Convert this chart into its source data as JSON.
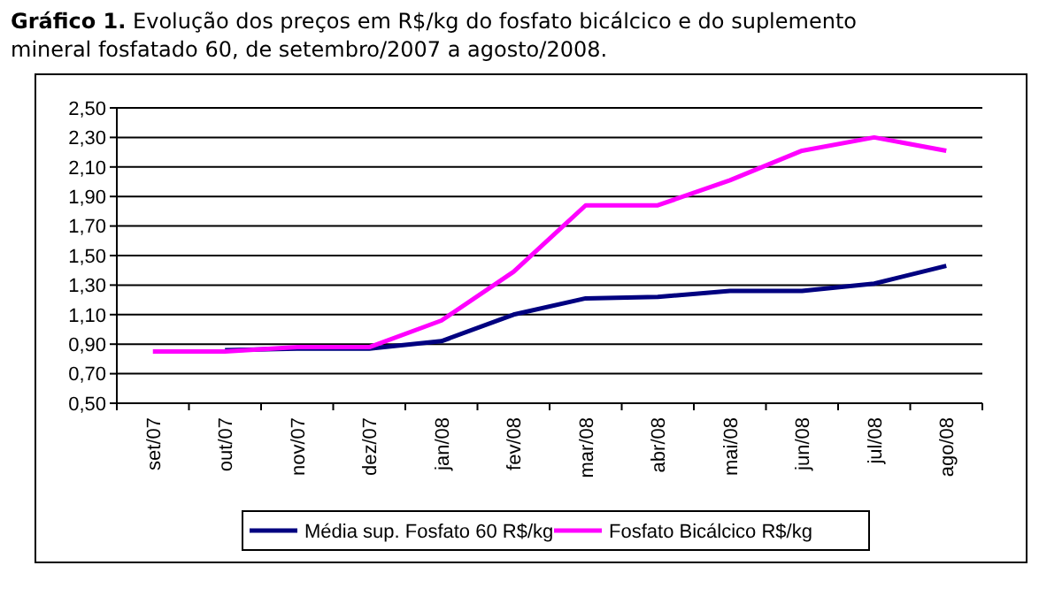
{
  "chart_data": {
    "type": "line",
    "title": "Gráfico 1.",
    "subtitle": "Evolução dos preços em R$/kg do fosfato bicálcico e do suplemento mineral fosfatado 60, de setembro/2007 a agosto/2008.",
    "categories": [
      "set/07",
      "out/07",
      "nov/07",
      "dez/07",
      "jan/08",
      "fev/08",
      "mar/08",
      "abr/08",
      "mai/08",
      "jun/08",
      "jul/08",
      "ago/08"
    ],
    "series": [
      {
        "name": "Média sup. Fosfato 60 R$/kg",
        "color": "#000080",
        "values": [
          null,
          0.86,
          0.87,
          0.87,
          0.92,
          1.1,
          1.21,
          1.22,
          1.26,
          1.26,
          1.31,
          1.43
        ]
      },
      {
        "name": "Fosfato Bicálcico R$/kg",
        "color": "#ff00ff",
        "values": [
          0.85,
          0.85,
          0.88,
          0.88,
          1.06,
          1.39,
          1.84,
          1.84,
          2.01,
          2.21,
          2.3,
          2.21
        ]
      }
    ],
    "ylim": [
      0.5,
      2.5
    ],
    "yticks": [
      {
        "value": 0.5,
        "label": "0,50"
      },
      {
        "value": 0.7,
        "label": "0,70"
      },
      {
        "value": 0.9,
        "label": "0,90"
      },
      {
        "value": 1.1,
        "label": "1,10"
      },
      {
        "value": 1.3,
        "label": "1,30"
      },
      {
        "value": 1.5,
        "label": "1,50"
      },
      {
        "value": 1.7,
        "label": "1,70"
      },
      {
        "value": 1.9,
        "label": "1,90"
      },
      {
        "value": 2.1,
        "label": "2,10"
      },
      {
        "value": 2.3,
        "label": "2,30"
      },
      {
        "value": 2.5,
        "label": "2,50"
      }
    ],
    "grid": "y",
    "legend": "bottom",
    "marker": "none",
    "line_style": "solid"
  }
}
